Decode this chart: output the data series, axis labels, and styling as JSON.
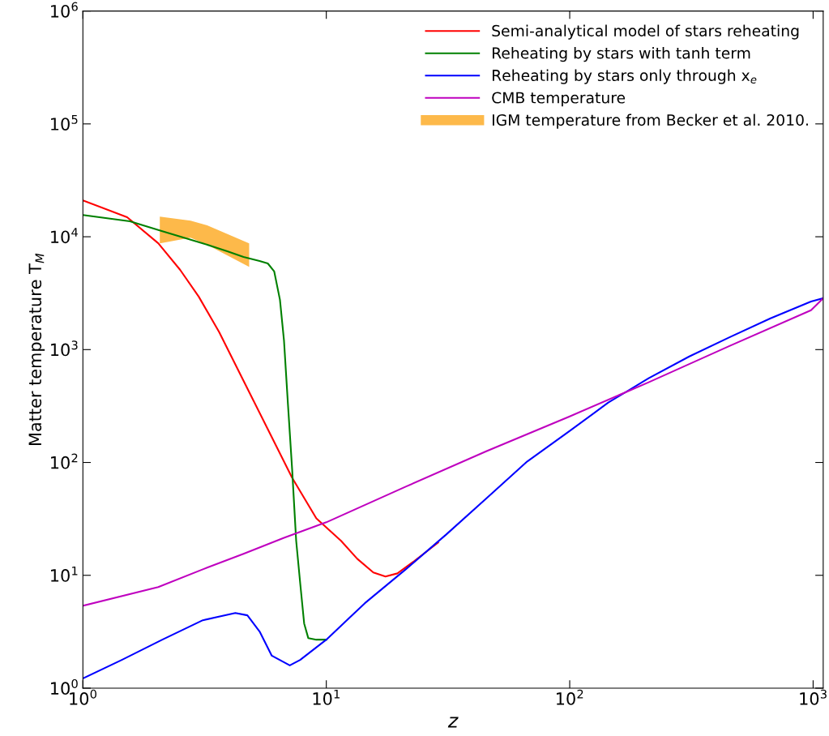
{
  "chart_data": {
    "type": "line",
    "xlabel": "z",
    "ylabel": "Matter temperature T$_{M}$",
    "log": "xy",
    "grid": false,
    "legend": "top right",
    "marker": "none",
    "line_style": "solid",
    "xlim": [
      1,
      1100
    ],
    "ylim": [
      1,
      1000000
    ],
    "xticks": [
      {
        "value": 1,
        "label": "10$^{0}$"
      },
      {
        "value": 10,
        "label": "10$^{1}$"
      },
      {
        "value": 100,
        "label": "10$^{2}$"
      },
      {
        "value": 1000,
        "label": "10$^{3}$"
      }
    ],
    "yticks": [
      {
        "value": 1,
        "label": "10$^{0}$"
      },
      {
        "value": 10,
        "label": "10$^{1}$"
      },
      {
        "value": 100,
        "label": "10$^{2}$"
      },
      {
        "value": 1000,
        "label": "10$^{3}$"
      },
      {
        "value": 10000,
        "label": "10$^{4}$"
      },
      {
        "value": 100000,
        "label": "10$^{5}$"
      },
      {
        "value": 1000000,
        "label": "10$^{6}$"
      }
    ],
    "series": [
      {
        "name": "Semi-analytical model of stars reheating",
        "color": "#ff0000",
        "x": [
          1,
          1.52,
          2.04,
          2.51,
          2.99,
          3.63,
          4.57,
          5.75,
          7.24,
          9.1,
          11.5,
          13.4,
          15.6,
          17.5,
          19.6,
          22.9,
          28.8
        ],
        "values": [
          21000,
          14900,
          8750,
          5080,
          2950,
          1430,
          530,
          197,
          73,
          32,
          20.2,
          14.0,
          10.6,
          9.75,
          10.4,
          13.3,
          19.5
        ]
      },
      {
        "name": "Reheating by stars with tanh term",
        "color": "#008000",
        "x": [
          1,
          1.56,
          2.12,
          3.11,
          3.92,
          4.57,
          5.32,
          5.75,
          6.11,
          6.45,
          6.7,
          6.96,
          7.24,
          7.52,
          7.81,
          8.11,
          8.43,
          9.1,
          10
        ],
        "values": [
          15600,
          13700,
          11200,
          8750,
          7430,
          6620,
          6100,
          5800,
          4920,
          2760,
          1210,
          323,
          86,
          20.2,
          8.55,
          3.74,
          2.78,
          2.69,
          2.69
        ]
      },
      {
        "name": "Reheating by stars only through x$_{e}$",
        "color": "#0000ff",
        "x": [
          1,
          1.445,
          2.12,
          3.11,
          4.23,
          4.74,
          5.32,
          5.97,
          7.08,
          7.81,
          10,
          14.4,
          21.2,
          31.1,
          45.6,
          66.9,
          100,
          144,
          211,
          310,
          455,
          668,
          980,
          1100
        ],
        "values": [
          1.22,
          1.78,
          2.69,
          4.0,
          4.64,
          4.42,
          3.18,
          1.94,
          1.59,
          1.78,
          2.69,
          5.66,
          11.3,
          23,
          48.4,
          102,
          190,
          339,
          557,
          869,
          1290,
          1890,
          2670,
          2850
        ]
      },
      {
        "name": "CMB temperature",
        "color": "#bf00bf",
        "x": [
          1,
          2.04,
          3.11,
          4.57,
          6.7,
          10,
          21.2,
          45.6,
          100,
          211,
          455,
          980,
          1100
        ],
        "values": [
          5.38,
          7.87,
          11.3,
          15.5,
          21.5,
          29.5,
          61,
          126,
          256,
          513,
          1080,
          2230,
          2850
        ]
      },
      {
        "name": "IGM temperature from Becker et al. 2010.",
        "color": "#fdb94a",
        "x": [
          2.07,
          2.77,
          3.24,
          4.82
        ],
        "lower": [
          8750,
          9800,
          8500,
          5400
        ],
        "upper": [
          15100,
          13900,
          12600,
          8750
        ],
        "values": [
          null,
          null,
          null,
          null
        ]
      }
    ]
  }
}
